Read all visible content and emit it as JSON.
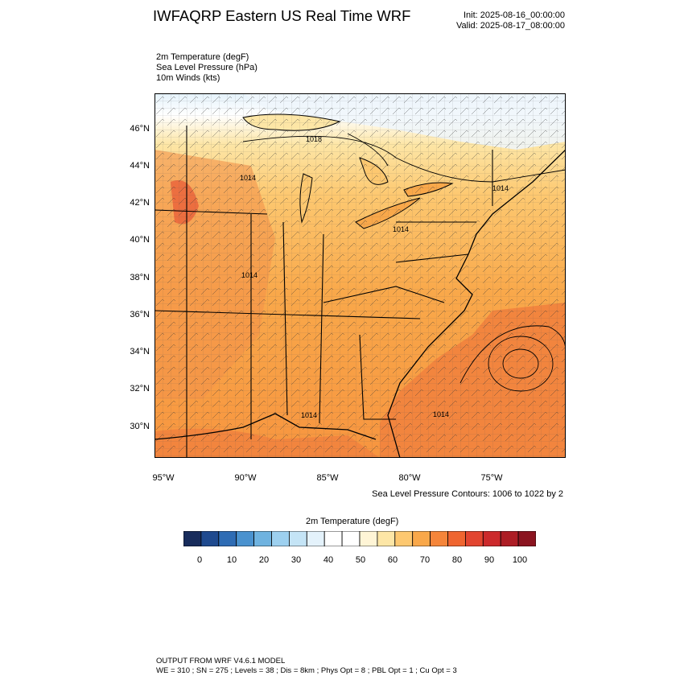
{
  "header": {
    "title": "IWFAQRP Eastern US Real Time WRF",
    "init": "Init: 2025-08-16_00:00:00",
    "valid": "Valid: 2025-08-17_08:00:00"
  },
  "fields": {
    "line1": "2m Temperature   (degF)",
    "line2": "Sea Level Pressure   (hPa)",
    "line3": "10m Winds   (kts)"
  },
  "map": {
    "lat_labels": [
      "46°N",
      "44°N",
      "42°N",
      "40°N",
      "38°N",
      "36°N",
      "34°N",
      "32°N",
      "30°N"
    ],
    "lon_labels": [
      "95°W",
      "90°W",
      "85°W",
      "80°W",
      "75°W"
    ],
    "pressure_labels": [
      "1018",
      "1014",
      "1014",
      "1014",
      "1014",
      "1014",
      "1014"
    ],
    "contour_note": "Sea Level Pressure Contours: 1006 to 1022 by 2"
  },
  "colorbar": {
    "title": "2m Temperature  (degF)",
    "labels": [
      "0",
      "10",
      "20",
      "30",
      "40",
      "50",
      "60",
      "70",
      "80",
      "90",
      "100"
    ],
    "colors": [
      "#182c5c",
      "#1f4a8f",
      "#2e6cb4",
      "#4a92cf",
      "#6fb3e0",
      "#9dd0ef",
      "#c4e4f6",
      "#e4f2fb",
      "#ffffff",
      "#ffffff",
      "#fff5d6",
      "#fde6a6",
      "#fdc870",
      "#f9a84a",
      "#f5853a",
      "#ef6530",
      "#e24530",
      "#cc2a2c",
      "#ad1d25",
      "#8b1420"
    ]
  },
  "footer": {
    "line1": "OUTPUT FROM WRF V4.6.1 MODEL",
    "line2": "WE = 310 ; SN = 275 ; Levels = 38 ; Dis = 8km ; Phys Opt = 8 ; PBL Opt = 1 ; Cu Opt = 3"
  }
}
